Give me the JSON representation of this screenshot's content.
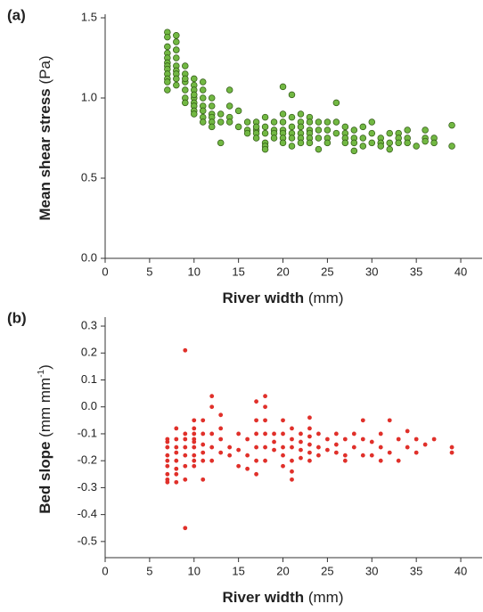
{
  "chart_data": [
    {
      "type": "scatter",
      "panel_label": "(a)",
      "xlabel": "River width",
      "xlabel_units": "(mm)",
      "ylabel": "Mean shear stress",
      "ylabel_units": "(Pa)",
      "color": "#72b843",
      "edge_color": "#2f5713",
      "xlim": [
        0,
        42
      ],
      "xticks": [
        0,
        5,
        10,
        15,
        20,
        25,
        30,
        35,
        40
      ],
      "ylim": [
        0,
        1.5
      ],
      "yticks": [
        {
          "value": 0,
          "label": "0.0"
        },
        0.5,
        {
          "value": 1,
          "label": "1.0"
        },
        1.5
      ],
      "x": [
        7,
        7,
        7,
        7,
        7,
        7,
        7,
        7,
        7,
        7,
        7,
        7,
        8,
        8,
        8,
        8,
        8,
        8,
        8,
        8,
        8,
        8,
        9,
        9,
        9,
        9,
        9,
        9,
        9,
        10,
        10,
        10,
        10,
        10,
        10,
        10,
        10,
        10,
        11,
        11,
        11,
        11,
        11,
        11,
        11,
        12,
        12,
        12,
        12,
        12,
        12,
        13,
        13,
        13,
        14,
        14,
        14,
        14,
        15,
        15,
        16,
        16,
        16,
        17,
        17,
        17,
        17,
        17,
        18,
        18,
        18,
        18,
        18,
        18,
        19,
        19,
        19,
        19,
        20,
        20,
        20,
        20,
        20,
        20,
        20,
        21,
        21,
        21,
        21,
        21,
        21,
        22,
        22,
        22,
        22,
        22,
        22,
        23,
        23,
        23,
        23,
        23,
        23,
        24,
        24,
        24,
        24,
        25,
        25,
        25,
        25,
        26,
        26,
        26,
        27,
        27,
        27,
        27,
        28,
        28,
        28,
        28,
        29,
        29,
        29,
        30,
        30,
        30,
        31,
        31,
        31,
        32,
        32,
        32,
        33,
        33,
        33,
        34,
        34,
        34,
        35,
        36,
        36,
        36,
        37,
        37,
        39,
        39
      ],
      "values": [
        1.41,
        1.38,
        1.32,
        1.28,
        1.25,
        1.22,
        1.2,
        1.18,
        1.15,
        1.12,
        1.1,
        1.05,
        1.39,
        1.35,
        1.3,
        1.25,
        1.2,
        1.17,
        1.15,
        1.12,
        1.08,
        1.3,
        1.2,
        1.15,
        1.1,
        1.05,
        1.0,
        0.97,
        1.12,
        1.12,
        1.08,
        1.05,
        1.0,
        0.97,
        0.95,
        0.92,
        0.9,
        1.02,
        1.1,
        1.05,
        1.0,
        0.95,
        0.92,
        0.88,
        0.85,
        1.0,
        0.95,
        0.9,
        0.88,
        0.85,
        0.82,
        0.9,
        0.85,
        0.72,
        1.05,
        0.95,
        0.88,
        0.85,
        0.82,
        0.92,
        0.85,
        0.8,
        0.78,
        0.85,
        0.8,
        0.78,
        0.75,
        0.82,
        0.88,
        0.82,
        0.78,
        0.72,
        0.7,
        0.68,
        0.85,
        0.8,
        0.78,
        0.75,
        1.07,
        0.9,
        0.85,
        0.8,
        0.78,
        0.75,
        0.72,
        1.02,
        0.88,
        0.82,
        0.78,
        0.75,
        0.7,
        0.9,
        0.85,
        0.82,
        0.78,
        0.75,
        0.72,
        0.88,
        0.85,
        0.8,
        0.78,
        0.75,
        0.72,
        0.85,
        0.8,
        0.75,
        0.68,
        0.85,
        0.8,
        0.75,
        0.72,
        0.97,
        0.85,
        0.78,
        0.82,
        0.78,
        0.75,
        0.72,
        0.8,
        0.75,
        0.72,
        0.67,
        0.82,
        0.75,
        0.7,
        0.85,
        0.78,
        0.72,
        0.75,
        0.72,
        0.7,
        0.78,
        0.72,
        0.68,
        0.78,
        0.75,
        0.72,
        0.8,
        0.75,
        0.72,
        0.7,
        0.8,
        0.75,
        0.73,
        0.75,
        0.72,
        0.83,
        0.7
      ]
    },
    {
      "type": "scatter",
      "panel_label": "(b)",
      "xlabel": "River width",
      "xlabel_units": "(mm)",
      "ylabel": "Bed slope",
      "ylabel_units": [
        "(mm mm",
        "-1",
        ")"
      ],
      "color": "#e0302a",
      "xlim": [
        0,
        42
      ],
      "xticks": [
        0,
        5,
        10,
        15,
        20,
        25,
        30,
        35,
        40
      ],
      "ylim": [
        -0.56,
        0.32
      ],
      "yticks": [
        0.3,
        0.2,
        0.1,
        {
          "value": 0,
          "label": "0.0"
        },
        -0.1,
        -0.2,
        -0.3,
        -0.4,
        -0.5
      ],
      "x": [
        7,
        7,
        7,
        7,
        7,
        7,
        7,
        7,
        7,
        8,
        8,
        8,
        8,
        8,
        8,
        8,
        8,
        9,
        9,
        9,
        9,
        9,
        9,
        9,
        9,
        10,
        10,
        10,
        10,
        10,
        10,
        10,
        10,
        10,
        11,
        11,
        11,
        11,
        11,
        11,
        12,
        12,
        12,
        12,
        12,
        13,
        13,
        13,
        13,
        14,
        14,
        15,
        15,
        15,
        16,
        16,
        16,
        17,
        17,
        17,
        17,
        17,
        17,
        18,
        18,
        18,
        18,
        18,
        18,
        19,
        19,
        19,
        20,
        20,
        20,
        20,
        20,
        21,
        21,
        21,
        21,
        21,
        21,
        22,
        22,
        22,
        22,
        23,
        23,
        23,
        23,
        23,
        23,
        24,
        24,
        24,
        25,
        25,
        26,
        26,
        26,
        27,
        27,
        27,
        28,
        28,
        29,
        29,
        29,
        30,
        30,
        31,
        31,
        31,
        32,
        32,
        33,
        33,
        34,
        34,
        35,
        35,
        36,
        37,
        39,
        39
      ],
      "values": [
        -0.12,
        -0.15,
        -0.18,
        -0.2,
        -0.22,
        -0.25,
        -0.28,
        -0.27,
        -0.13,
        -0.12,
        -0.15,
        -0.17,
        -0.2,
        -0.23,
        -0.25,
        -0.28,
        -0.08,
        0.21,
        -0.12,
        -0.15,
        -0.18,
        -0.22,
        -0.27,
        -0.45,
        -0.1,
        -0.05,
        -0.08,
        -0.1,
        -0.13,
        -0.15,
        -0.18,
        -0.2,
        -0.22,
        -0.12,
        -0.1,
        -0.14,
        -0.17,
        -0.2,
        -0.27,
        -0.05,
        0.04,
        0.0,
        -0.1,
        -0.15,
        -0.2,
        -0.03,
        -0.08,
        -0.12,
        -0.17,
        -0.15,
        -0.18,
        -0.1,
        -0.16,
        -0.22,
        -0.12,
        -0.18,
        -0.23,
        0.02,
        -0.05,
        -0.1,
        -0.15,
        -0.2,
        -0.25,
        0.04,
        0.0,
        -0.05,
        -0.1,
        -0.15,
        -0.2,
        -0.1,
        -0.13,
        -0.16,
        -0.05,
        -0.1,
        -0.15,
        -0.18,
        -0.22,
        -0.08,
        -0.12,
        -0.15,
        -0.2,
        -0.24,
        -0.27,
        -0.1,
        -0.13,
        -0.16,
        -0.19,
        -0.04,
        -0.08,
        -0.11,
        -0.14,
        -0.17,
        -0.2,
        -0.1,
        -0.15,
        -0.18,
        -0.12,
        -0.16,
        -0.1,
        -0.14,
        -0.17,
        -0.12,
        -0.18,
        -0.2,
        -0.1,
        -0.15,
        -0.05,
        -0.12,
        -0.18,
        -0.13,
        -0.18,
        -0.1,
        -0.15,
        -0.2,
        -0.05,
        -0.17,
        -0.12,
        -0.2,
        -0.09,
        -0.15,
        -0.12,
        -0.17,
        -0.14,
        -0.12,
        -0.15,
        -0.17
      ]
    }
  ]
}
